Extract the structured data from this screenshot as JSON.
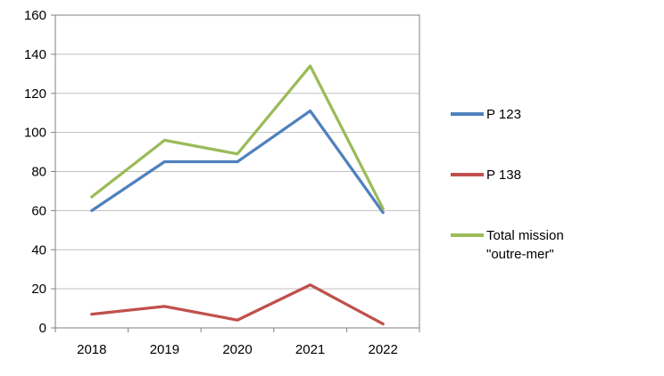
{
  "chart_data": {
    "type": "line",
    "title": "",
    "xlabel": "",
    "ylabel": "",
    "categories": [
      "2018",
      "2019",
      "2020",
      "2021",
      "2022"
    ],
    "series": [
      {
        "name": "P 123",
        "color": "#4F81BD",
        "values": [
          60,
          85,
          85,
          111,
          59
        ]
      },
      {
        "name": "P 138",
        "color": "#C0504D",
        "values": [
          7,
          11,
          4,
          22,
          2
        ]
      },
      {
        "name": "Total mission \"outre-mer\"",
        "color": "#9BBB59",
        "values": [
          67,
          96,
          89,
          134,
          61
        ]
      }
    ],
    "ylim": [
      0,
      160
    ],
    "yticks": [
      0,
      20,
      40,
      60,
      80,
      100,
      120,
      140,
      160
    ],
    "grid": true,
    "legend_position": "right",
    "colors": {
      "gridline": "#BFBFBF",
      "axis_border": "#808080",
      "text": "#000000"
    }
  }
}
